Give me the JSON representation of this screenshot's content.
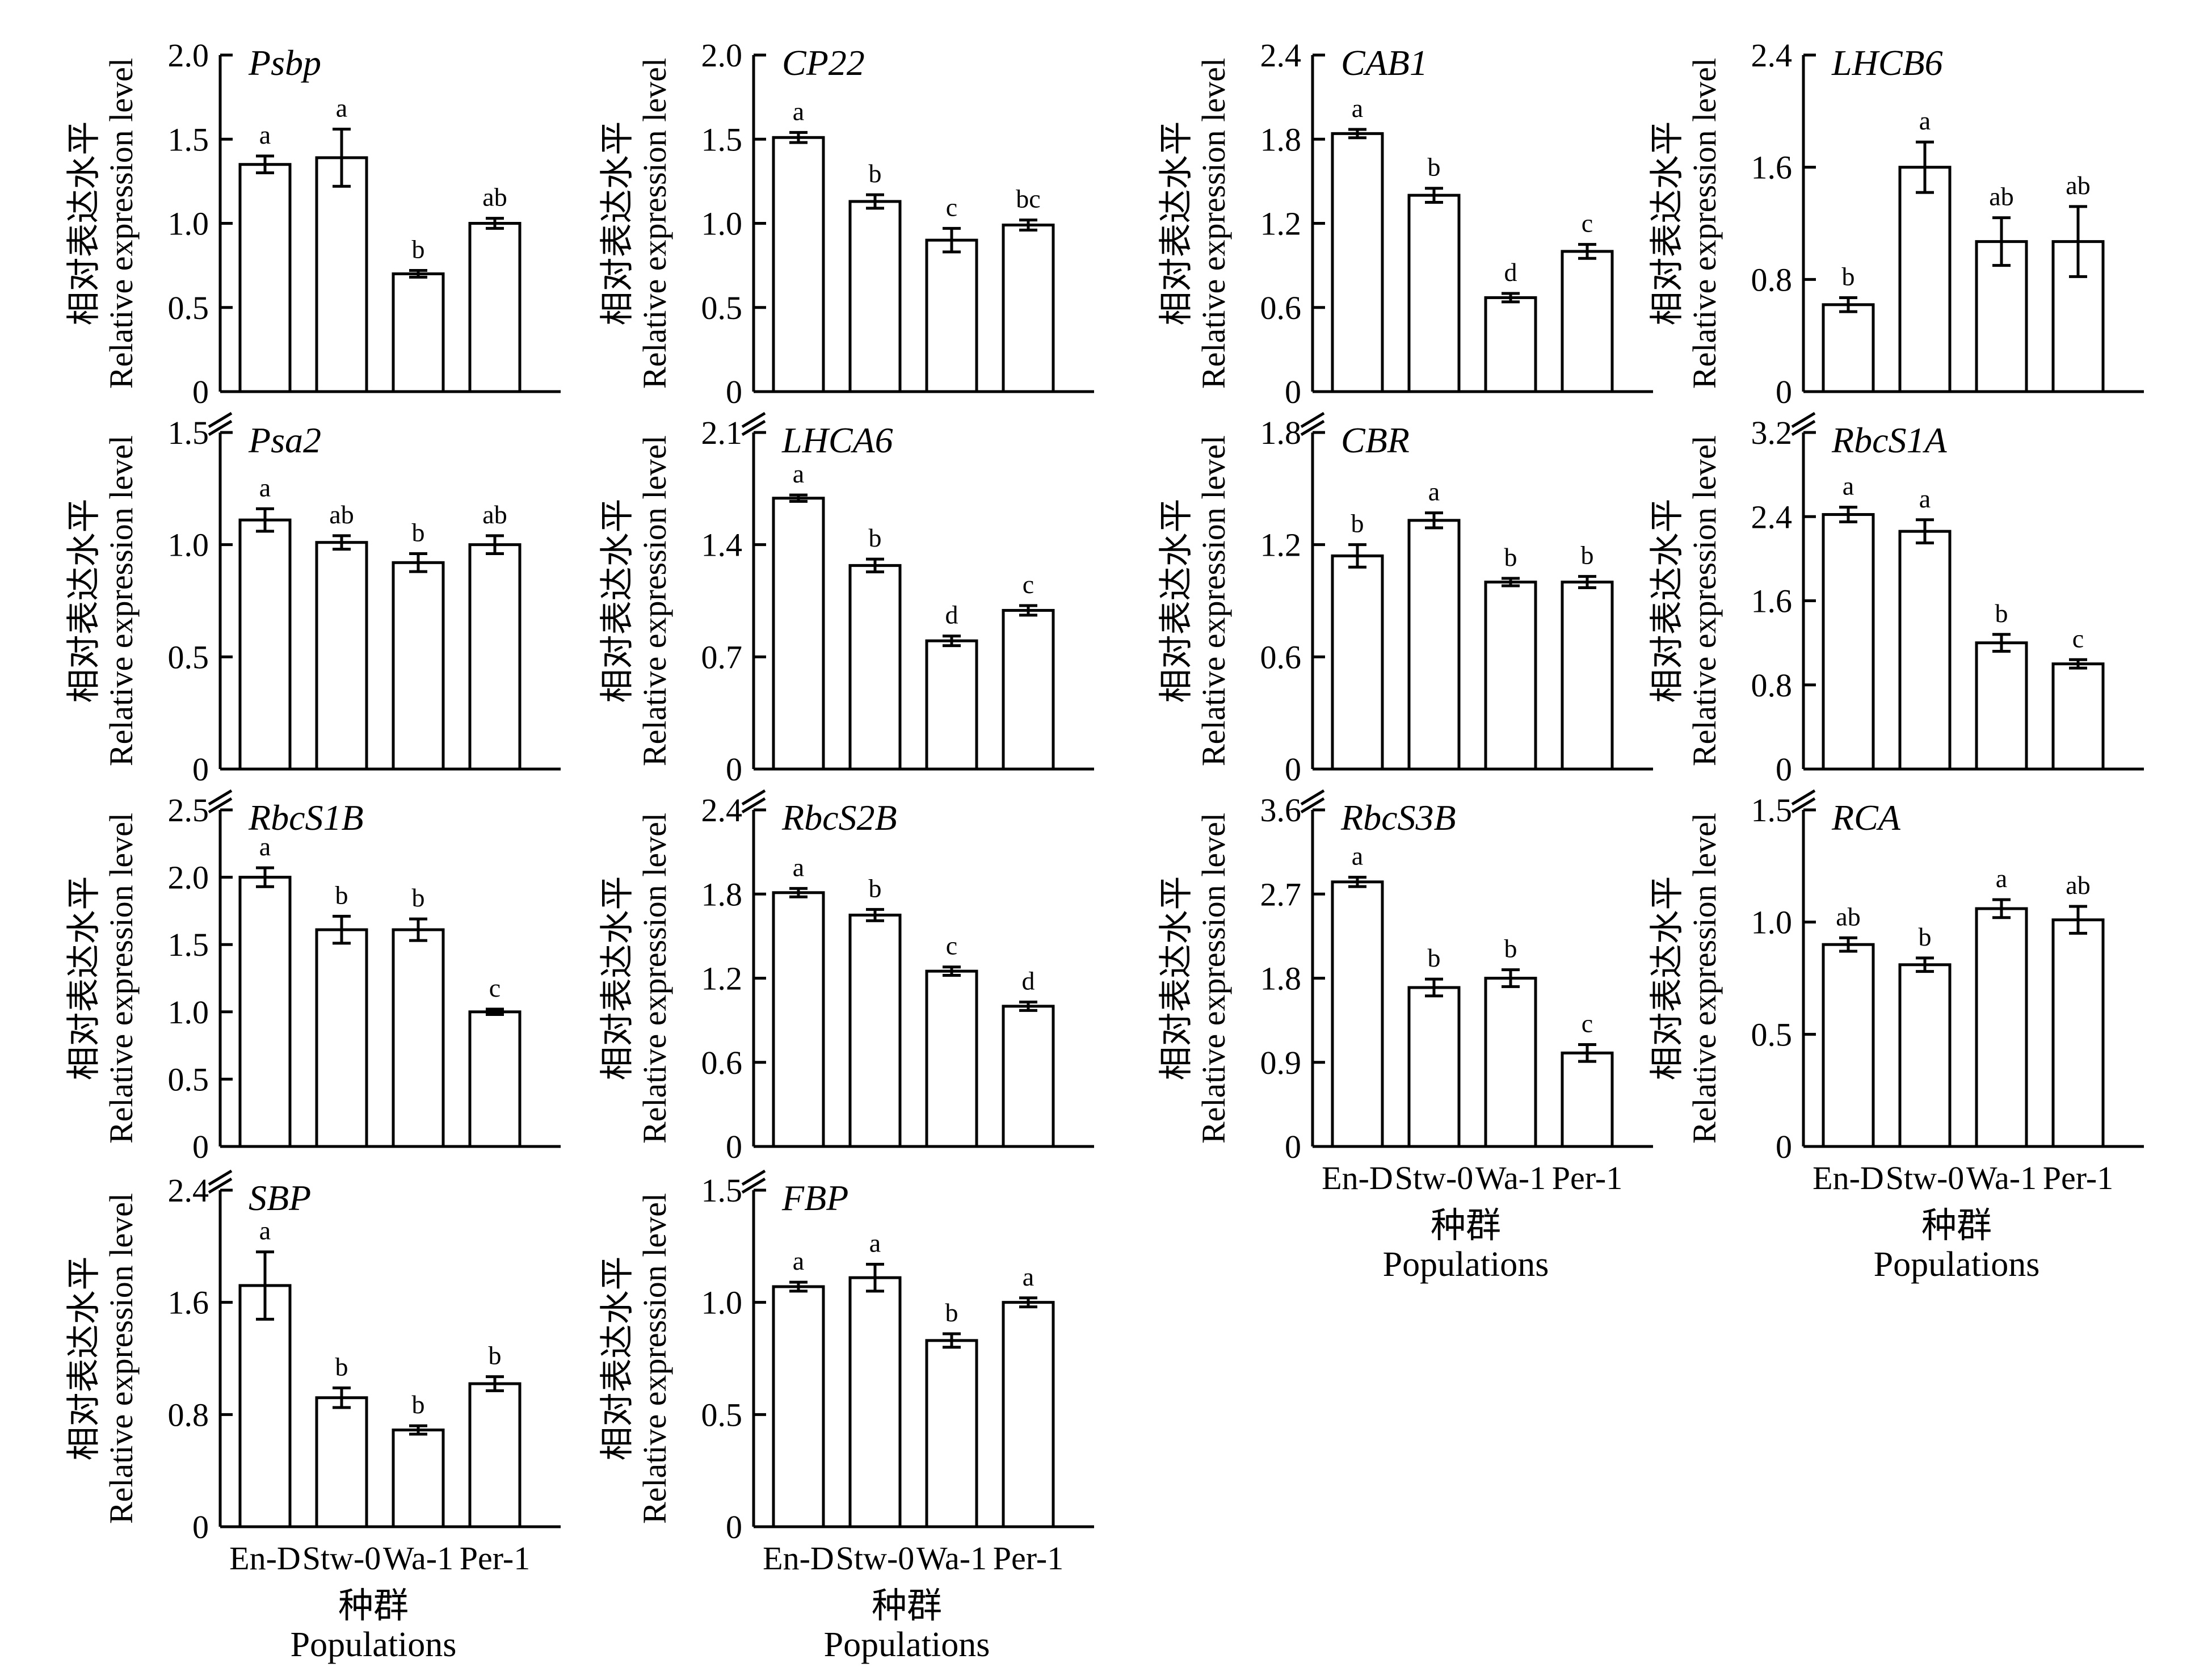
{
  "figure": {
    "ylabel_cn": "相对表达水平",
    "ylabel_en": "Relative expression level",
    "xlabel_cn": "种群",
    "xlabel_en": "Populations",
    "categories": [
      "En-D",
      "Stw-0",
      "Wa-1",
      "Per-1"
    ]
  },
  "chart_data": [
    {
      "type": "bar",
      "gene": "Psbp",
      "ylim": [
        0,
        2.0
      ],
      "ticks": [
        "0",
        "0.5",
        "1.0",
        "1.5",
        "2.0"
      ],
      "axis_break": false,
      "categories": [
        "En-D",
        "Stw-0",
        "Wa-1",
        "Per-1"
      ],
      "values": [
        1.35,
        1.39,
        0.7,
        1.0
      ],
      "errors": [
        0.05,
        0.17,
        0.02,
        0.03
      ],
      "letters": [
        "a",
        "a",
        "b",
        "ab"
      ]
    },
    {
      "type": "bar",
      "gene": "CP22",
      "ylim": [
        0,
        2.0
      ],
      "ticks": [
        "0",
        "0.5",
        "1.0",
        "1.5",
        "2.0"
      ],
      "axis_break": false,
      "categories": [
        "En-D",
        "Stw-0",
        "Wa-1",
        "Per-1"
      ],
      "values": [
        1.51,
        1.13,
        0.9,
        0.99
      ],
      "errors": [
        0.03,
        0.04,
        0.07,
        0.03
      ],
      "letters": [
        "a",
        "b",
        "c",
        "bc"
      ]
    },
    {
      "type": "bar",
      "gene": "CAB1",
      "ylim": [
        0,
        2.4
      ],
      "ticks": [
        "0",
        "0.6",
        "1.2",
        "1.8",
        "2.4"
      ],
      "axis_break": false,
      "categories": [
        "En-D",
        "Stw-0",
        "Wa-1",
        "Per-1"
      ],
      "values": [
        1.84,
        1.4,
        0.67,
        1.0
      ],
      "errors": [
        0.03,
        0.05,
        0.03,
        0.05
      ],
      "letters": [
        "a",
        "b",
        "d",
        "c"
      ]
    },
    {
      "type": "bar",
      "gene": "LHCB6",
      "ylim": [
        0,
        2.4
      ],
      "ticks": [
        "0",
        "0.8",
        "1.6",
        "2.4"
      ],
      "axis_break": false,
      "categories": [
        "En-D",
        "Stw-0",
        "Wa-1",
        "Per-1"
      ],
      "values": [
        0.62,
        1.6,
        1.07,
        1.07
      ],
      "errors": [
        0.05,
        0.18,
        0.17,
        0.25
      ],
      "letters": [
        "b",
        "a",
        "ab",
        "ab"
      ]
    },
    {
      "type": "bar",
      "gene": "Psa2",
      "ylim": [
        0,
        1.5
      ],
      "ticks": [
        "0",
        "0.5",
        "1.0",
        "1.5"
      ],
      "axis_break": true,
      "categories": [
        "En-D",
        "Stw-0",
        "Wa-1",
        "Per-1"
      ],
      "values": [
        1.11,
        1.01,
        0.92,
        1.0
      ],
      "errors": [
        0.05,
        0.03,
        0.04,
        0.04
      ],
      "letters": [
        "a",
        "ab",
        "b",
        "ab"
      ]
    },
    {
      "type": "bar",
      "gene": "LHCA6",
      "ylim": [
        0,
        2.1
      ],
      "ticks": [
        "0",
        "0.7",
        "1.4",
        "2.1"
      ],
      "axis_break": true,
      "categories": [
        "En-D",
        "Stw-0",
        "Wa-1",
        "Per-1"
      ],
      "values": [
        1.69,
        1.27,
        0.8,
        0.99
      ],
      "errors": [
        0.02,
        0.04,
        0.03,
        0.03
      ],
      "letters": [
        "a",
        "b",
        "d",
        "c"
      ]
    },
    {
      "type": "bar",
      "gene": "CBR",
      "ylim": [
        0,
        1.8
      ],
      "ticks": [
        "0",
        "0.6",
        "1.2",
        "1.8"
      ],
      "axis_break": true,
      "categories": [
        "En-D",
        "Stw-0",
        "Wa-1",
        "Per-1"
      ],
      "values": [
        1.14,
        1.33,
        1.0,
        1.0
      ],
      "errors": [
        0.06,
        0.04,
        0.02,
        0.03
      ],
      "letters": [
        "b",
        "a",
        "b",
        "b"
      ]
    },
    {
      "type": "bar",
      "gene": "RbcS1A",
      "ylim": [
        0,
        3.2
      ],
      "ticks": [
        "0",
        "0.8",
        "1.6",
        "2.4",
        "3.2"
      ],
      "axis_break": true,
      "categories": [
        "En-D",
        "Stw-0",
        "Wa-1",
        "Per-1"
      ],
      "values": [
        2.42,
        2.26,
        1.2,
        1.0
      ],
      "errors": [
        0.07,
        0.11,
        0.08,
        0.04
      ],
      "letters": [
        "a",
        "a",
        "b",
        "c"
      ]
    },
    {
      "type": "bar",
      "gene": "RbcS1B",
      "ylim": [
        0,
        2.5
      ],
      "ticks": [
        "0",
        "0.5",
        "1.0",
        "1.5",
        "2.0",
        "2.5"
      ],
      "axis_break": true,
      "categories": [
        "En-D",
        "Stw-0",
        "Wa-1",
        "Per-1"
      ],
      "values": [
        2.0,
        1.61,
        1.61,
        1.0
      ],
      "errors": [
        0.07,
        0.1,
        0.08,
        0.02
      ],
      "letters": [
        "a",
        "b",
        "b",
        "c"
      ]
    },
    {
      "type": "bar",
      "gene": "RbcS2B",
      "ylim": [
        0,
        2.4
      ],
      "ticks": [
        "0",
        "0.6",
        "1.2",
        "1.8",
        "2.4"
      ],
      "axis_break": true,
      "categories": [
        "En-D",
        "Stw-0",
        "Wa-1",
        "Per-1"
      ],
      "values": [
        1.81,
        1.65,
        1.25,
        1.0
      ],
      "errors": [
        0.03,
        0.04,
        0.03,
        0.03
      ],
      "letters": [
        "a",
        "b",
        "c",
        "d"
      ]
    },
    {
      "type": "bar",
      "gene": "RbcS3B",
      "ylim": [
        0,
        3.6
      ],
      "ticks": [
        "0",
        "0.9",
        "1.8",
        "2.7",
        "3.6"
      ],
      "axis_break": true,
      "categories": [
        "En-D",
        "Stw-0",
        "Wa-1",
        "Per-1"
      ],
      "values": [
        2.83,
        1.7,
        1.8,
        1.0
      ],
      "errors": [
        0.05,
        0.09,
        0.09,
        0.09
      ],
      "letters": [
        "a",
        "b",
        "b",
        "c"
      ]
    },
    {
      "type": "bar",
      "gene": "RCA",
      "ylim": [
        0,
        1.5
      ],
      "ticks": [
        "0",
        "0.5",
        "1.0",
        "1.5"
      ],
      "axis_break": true,
      "categories": [
        "En-D",
        "Stw-0",
        "Wa-1",
        "Per-1"
      ],
      "values": [
        0.9,
        0.81,
        1.06,
        1.01
      ],
      "errors": [
        0.03,
        0.03,
        0.04,
        0.06
      ],
      "letters": [
        "ab",
        "b",
        "a",
        "ab"
      ]
    },
    {
      "type": "bar",
      "gene": "SBP",
      "ylim": [
        0,
        2.4
      ],
      "ticks": [
        "0",
        "0.8",
        "1.6",
        "2.4"
      ],
      "axis_break": true,
      "categories": [
        "En-D",
        "Stw-0",
        "Wa-1",
        "Per-1"
      ],
      "values": [
        1.72,
        0.92,
        0.69,
        1.02
      ],
      "errors": [
        0.24,
        0.07,
        0.03,
        0.05
      ],
      "letters": [
        "a",
        "b",
        "b",
        "b"
      ]
    },
    {
      "type": "bar",
      "gene": "FBP",
      "ylim": [
        0,
        1.5
      ],
      "ticks": [
        "0",
        "0.5",
        "1.0",
        "1.5"
      ],
      "axis_break": true,
      "categories": [
        "En-D",
        "Stw-0",
        "Wa-1",
        "Per-1"
      ],
      "values": [
        1.07,
        1.11,
        0.83,
        1.0
      ],
      "errors": [
        0.02,
        0.06,
        0.03,
        0.02
      ],
      "letters": [
        "a",
        "a",
        "b",
        "a"
      ]
    }
  ]
}
